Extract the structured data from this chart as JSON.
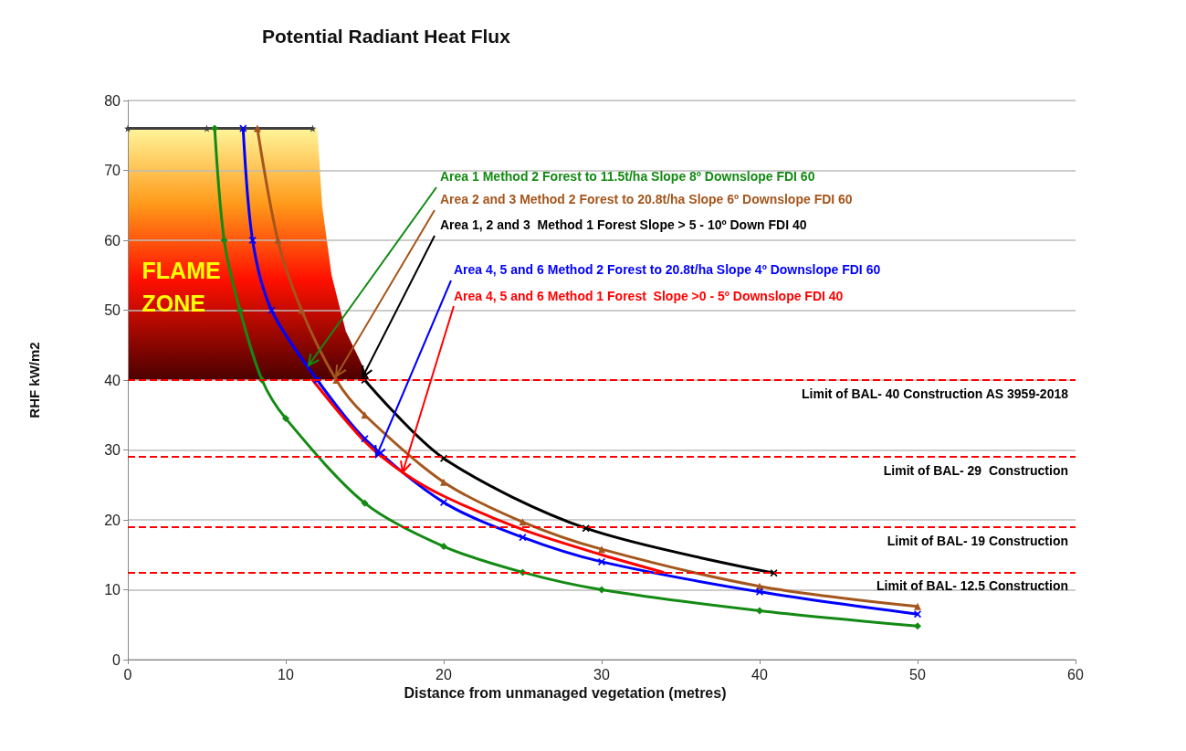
{
  "chart_data": {
    "type": "line",
    "title": "Potential Radiant Heat Flux",
    "xlabel": "Distance from unmanaged vegetation (metres)",
    "ylabel": "RHF kW/m2",
    "xlim": [
      0,
      60
    ],
    "xticks": [
      0,
      10,
      20,
      30,
      40,
      50,
      60
    ],
    "ylim": [
      0,
      80
    ],
    "yticks": [
      0,
      10,
      20,
      30,
      40,
      50,
      60,
      70,
      80
    ],
    "grid": "y",
    "legend": false,
    "line_style": "solid",
    "annotations": [
      "FLAME ZONE"
    ],
    "ref_lines": [
      {
        "axis": "y",
        "value": 40,
        "label": "Limit of BAL- 40 Construction AS 3959-2018",
        "color": "#ff0000",
        "line_style": "dashed"
      },
      {
        "axis": "y",
        "value": 29,
        "label": "Limit of BAL- 29  Construction",
        "color": "#ff0000",
        "line_style": "dashed"
      },
      {
        "axis": "y",
        "value": 19,
        "label": "Limit of BAL- 19 Construction",
        "color": "#ff0000",
        "line_style": "dashed"
      },
      {
        "axis": "y",
        "value": 12.5,
        "label": "Limit of BAL- 12.5 Construction",
        "color": "#ff0000",
        "line_style": "dashed"
      }
    ],
    "series": [
      {
        "name": "Area 1 Method 2 Forest to 11.5t/ha Slope 8º Downslope FDI 60",
        "color": "#138a13",
        "marker": "diamond",
        "x": [
          5.5,
          6.1,
          7.1,
          8.5,
          10,
          15,
          20,
          25,
          30,
          40,
          50
        ],
        "values": [
          76,
          60,
          50,
          40,
          34.5,
          22.4,
          16.2,
          12.5,
          10,
          7,
          4.8
        ]
      },
      {
        "name": "Area 2 and 3 Method 2 Forest to 20.8t/ha Slope 6º Downslope FDI 60",
        "color": "#a5561c",
        "marker": "triangle",
        "x": [
          8.2,
          9.5,
          11,
          13.2,
          15,
          20,
          25,
          30,
          40,
          50
        ],
        "values": [
          76,
          60,
          50,
          40,
          35,
          25.4,
          19.7,
          15.8,
          10.5,
          7.6
        ]
      },
      {
        "name": "Area 1, 2 and 3  Method 1 Forest Slope > 5 - 10º Down FDI 40",
        "color": "#000000",
        "marker": "cross",
        "x": [
          15,
          20,
          29,
          40.9
        ],
        "values": [
          40,
          28.8,
          18.8,
          12.4
        ]
      },
      {
        "name": "Area 4, 5 and 6 Method 2 Forest to 20.8t/ha Slope 4º Downslope FDI 60",
        "color": "#0000ff",
        "marker": "cross",
        "x": [
          7.3,
          7.9,
          9.1,
          12,
          15,
          20,
          25,
          30,
          40,
          50
        ],
        "values": [
          76,
          60,
          50,
          40,
          31.6,
          22.5,
          17.5,
          14,
          9.7,
          6.5
        ]
      },
      {
        "name": "Area 4, 5 and 6 Method 1 Forest  Slope >0 - 5º Downslope FDI 40",
        "color": "#ff0000",
        "marker": "none",
        "x": [
          11.7,
          15,
          17.4,
          20,
          25,
          30,
          33.9
        ],
        "values": [
          40,
          31.2,
          26.8,
          23.4,
          18.6,
          15,
          12.5
        ]
      },
      {
        "color": "#404040",
        "marker": "star",
        "x": [
          0,
          5,
          11.7
        ],
        "values": [
          76,
          76,
          76
        ]
      }
    ]
  }
}
